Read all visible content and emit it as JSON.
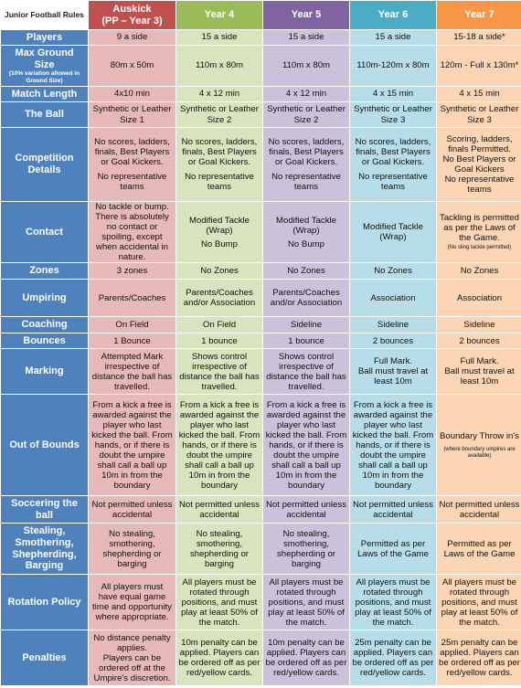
{
  "title": "Junior Football Rules",
  "columns": [
    {
      "l1": "Auskick",
      "l2": "(PP – Year 3)"
    },
    {
      "l1": "Year 4",
      "l2": ""
    },
    {
      "l1": "Year 5",
      "l2": ""
    },
    {
      "l1": "Year 6",
      "l2": ""
    },
    {
      "l1": "Year 7",
      "l2": ""
    }
  ],
  "rows": {
    "players": {
      "label": "Players",
      "cells": [
        "9 a side",
        "15 a side",
        "15 a side",
        "15 a side",
        "15-18 a side*"
      ]
    },
    "ground": {
      "label": "Max Ground Size",
      "note": "(10% variation allowed in Ground Size)",
      "cells": [
        "80m x 50m",
        "110m x 80m",
        "110m x 80m",
        "110m-120m x 80m",
        "120m - Full x 130m*"
      ]
    },
    "match": {
      "label": "Match Length",
      "cells": [
        "4x10 min",
        "4 x 12 min",
        "4 x 12 min",
        "4 x 15 min",
        "4 x 15 min"
      ]
    },
    "ball": {
      "label": "The Ball",
      "cells": [
        [
          "Synthetic or Leather",
          "Size 1"
        ],
        [
          "Synthetic or Leather",
          "Size 2"
        ],
        [
          "Synthetic or Leather",
          "Size 2"
        ],
        [
          "Synthetic or Leather",
          "Size 3"
        ],
        [
          "Synthetic or Leather",
          "Size 3"
        ]
      ]
    },
    "competition": {
      "label": "Competition Details",
      "cells": [
        [
          "No scores, ladders, finals, Best Players or Goal Kickers.",
          "No representative teams"
        ],
        [
          "No scores, ladders, finals, Best Players or Goal Kickers.",
          "No representative teams"
        ],
        [
          "No scores, ladders, finals, Best Players or Goal Kickers.",
          "No representative teams"
        ],
        [
          "No scores, ladders, finals, Best Players or Goal Kickers.",
          "No representative teams"
        ],
        [
          "Scoring, ladders, finals Permitted.",
          "No Best Players or Goal Kickers",
          "No representative teams"
        ]
      ]
    },
    "contact": {
      "label": "Contact",
      "cells": [
        [
          "No tackle or bump. There is absolutely no contact or spoiling, except when accidental in nature."
        ],
        [
          "Modified Tackle (Wrap)",
          "No Bump"
        ],
        [
          "Modified Tackle (Wrap)",
          "No Bump"
        ],
        [
          "Modified Tackle (Wrap)"
        ],
        [
          "Tackling is permitted as per the Laws of the Game."
        ]
      ],
      "y7_note": "(No sling tackle permitted)"
    },
    "zones": {
      "label": "Zones",
      "cells": [
        "3 zones",
        "No Zones",
        "No Zones",
        "No Zones",
        "No Zones"
      ]
    },
    "umpiring": {
      "label": "Umpiring",
      "cells": [
        "Parents/Coaches",
        "Parents/Coaches and/or Association",
        "Parents/Coaches and/or Association",
        "Association",
        "Association"
      ]
    },
    "coaching": {
      "label": "Coaching",
      "cells": [
        "On Field",
        "On Field",
        "Sideline",
        "Sideline",
        "Sideline"
      ]
    },
    "bounces": {
      "label": "Bounces",
      "cells": [
        "1 Bounce",
        "1 bounce",
        "1 bounce",
        "2 bounces",
        "2 bounces"
      ]
    },
    "marking": {
      "label": "Marking",
      "cells": [
        [
          "Attempted Mark irrespective of distance the ball has travelled."
        ],
        [
          "Shows control irrespective of distance the ball has travelled."
        ],
        [
          "Shows control irrespective of distance the ball has travelled."
        ],
        [
          "Full Mark.",
          "Ball must travel at least 10m"
        ],
        [
          "Full Mark.",
          "Ball must travel at least 10m"
        ]
      ]
    },
    "oob": {
      "label": "Out of Bounds",
      "cells": [
        "From a kick a free is awarded against the player who last kicked the ball. From hands, or if there is doubt the umpire shall call a ball up 10m in from the boundary",
        "From a kick a free is awarded against the player who last kicked the ball. From hands, or if there is doubt the umpire shall call a ball up 10m in from the boundary",
        "From a kick a free is awarded against the player who last kicked the ball. From hands, or if there is doubt the umpire shall call a ball up 10m in from the boundary",
        "From a kick a free is awarded against the player who last kicked the ball. From hands, or if there is doubt the umpire shall call a ball up 10m in from the boundary",
        "Boundary Throw in's"
      ],
      "y7_note": "(where boundary umpires are available)"
    },
    "soccering": {
      "label": "Soccering the ball",
      "cells": [
        "Not permitted unless accidental",
        "Not permitted unless accidental",
        "Not permitted unless accidental",
        "Not permitted unless accidental",
        "Not permitted unless accidental"
      ]
    },
    "stealing": {
      "label": "Stealing, Smothering, Shepherding, Barging",
      "cells": [
        "No stealing, smothering, shepherding or barging",
        "No stealing, smothering, shepherding or barging",
        "No stealing, smothering, shepherding or barging",
        "Permitted as per Laws of the Game",
        "Permitted as per Laws of the Game"
      ]
    },
    "rotation": {
      "label": "Rotation Policy",
      "cells": [
        "All players must have equal game time and opportunity where appropriate.",
        "All players must be rotated through positions, and must play at least 50% of the match.",
        "All players must be rotated through positions, and must play at least 50% of the match.",
        "All players must be rotated through positions, and must play at least 50% of the match.",
        "All players must be rotated through positions, and must play at least 50% of the match."
      ]
    },
    "penalties": {
      "label": "Penalties",
      "cells": [
        [
          "No distance penalty applies.",
          "Players can be ordered off at the Umpire's discretion."
        ],
        [
          "10m penalty can be applied. Players can be ordered off as per red/yellow cards."
        ],
        [
          "10m penalty can be applied. Players can be ordered off as per red/yellow cards."
        ],
        [
          "25m penalty can be applied. Players can be ordered off as per red/yellow cards."
        ],
        [
          "25m penalty can be applied. Players can be ordered off as per red/yellow cards."
        ]
      ]
    }
  }
}
